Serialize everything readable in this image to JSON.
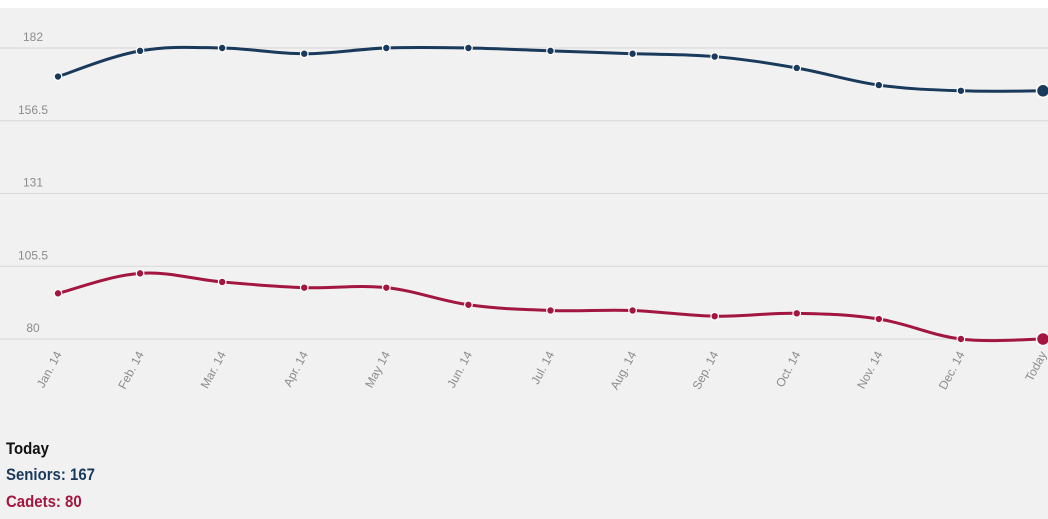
{
  "colors": {
    "background": "#f1f1f1",
    "grid": "#d8d8d8",
    "tick_text": "#8c8c8c",
    "seniors": "#1a3a5c",
    "cadets": "#a3163f"
  },
  "chart_data": {
    "type": "line",
    "categories": [
      "Jan. 14",
      "Feb. 14",
      "Mar. 14",
      "Apr. 14",
      "May 14",
      "Jun. 14",
      "Jul. 14",
      "Aug. 14",
      "Sep. 14",
      "Oct. 14",
      "Nov. 14",
      "Dec. 14",
      "Today"
    ],
    "yticks": [
      80,
      105.5,
      131,
      156.5,
      182
    ],
    "ylim": [
      80,
      182
    ],
    "grid": true,
    "title": "",
    "xlabel": "",
    "ylabel": "",
    "series": [
      {
        "key": "seniors",
        "values": [
          172,
          181,
          182,
          180,
          182,
          182,
          181,
          180,
          179,
          175,
          169,
          167,
          167
        ]
      },
      {
        "key": "cadets",
        "values": [
          96,
          103,
          100,
          98,
          98,
          92,
          90,
          90,
          88,
          89,
          87,
          80,
          80
        ]
      }
    ]
  },
  "summary": {
    "title": "Today",
    "seniors_text": "Seniors: 167",
    "cadets_text": "Cadets: 80"
  }
}
